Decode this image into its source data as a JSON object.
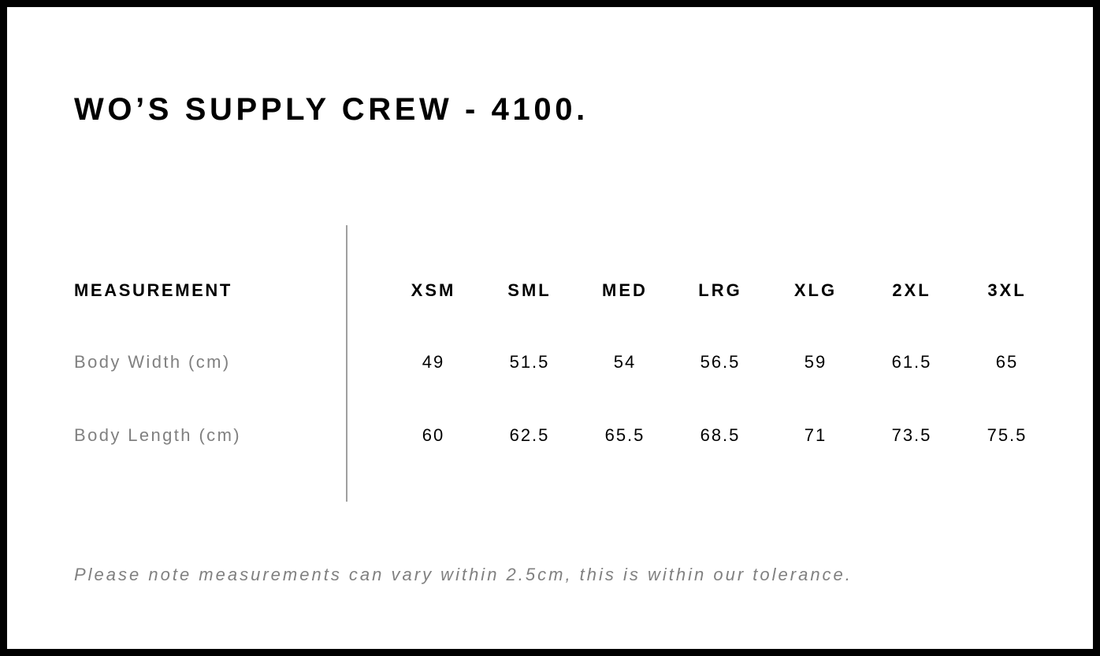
{
  "title": "WO’S SUPPLY CREW - 4100.",
  "table": {
    "header_label": "MEASUREMENT",
    "sizes": [
      "XSM",
      "SML",
      "MED",
      "LRG",
      "XLG",
      "2XL",
      "3XL"
    ],
    "rows": [
      {
        "label": "Body Width (cm)",
        "values": [
          "49",
          "51.5",
          "54",
          "56.5",
          "59",
          "61.5",
          "65"
        ]
      },
      {
        "label": "Body Length (cm)",
        "values": [
          "60",
          "62.5",
          "65.5",
          "68.5",
          "71",
          "73.5",
          "75.5"
        ]
      }
    ]
  },
  "note": "Please note measurements can vary within 2.5cm, this is within our tolerance."
}
